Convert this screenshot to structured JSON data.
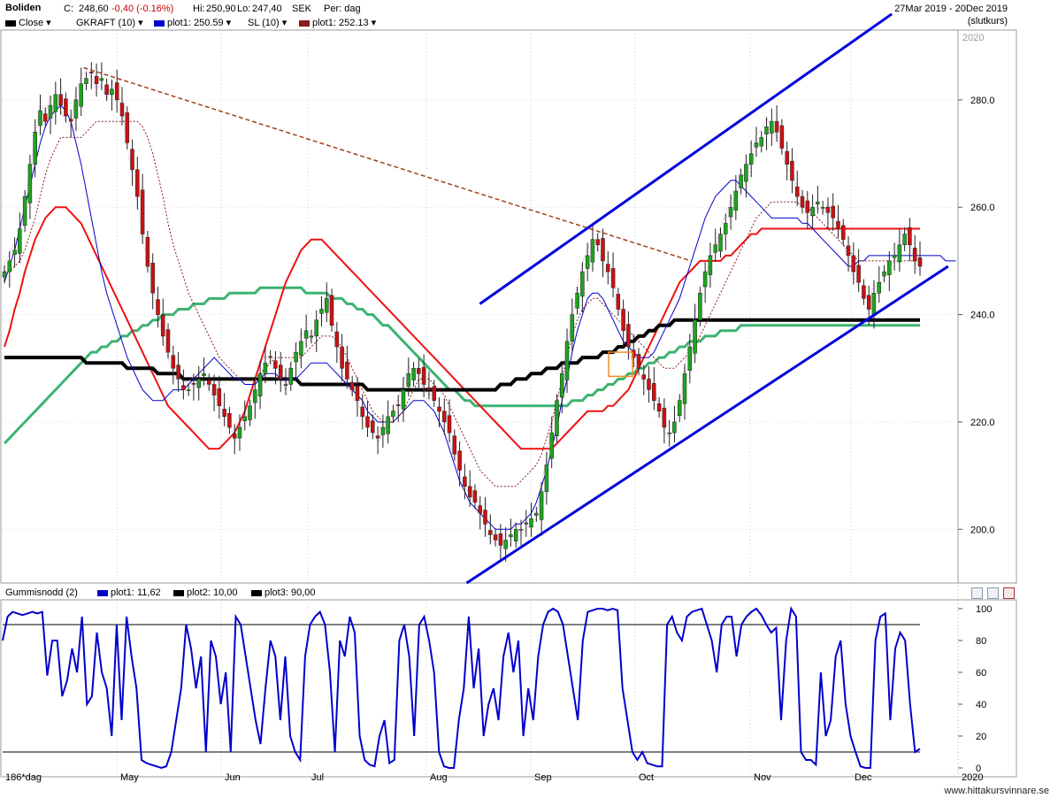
{
  "header": {
    "ticker": "Boliden",
    "close_label": "C:",
    "close_value": "248,60",
    "change": "-0,40 (-0.16%)",
    "hi_label": "Hi:",
    "hi_value": "250,90",
    "lo_label": "Lo:",
    "lo_value": "247,40",
    "currency": "SEK",
    "period": "Per: dag",
    "date_range": "27Mar 2019 - 20Dec 2019",
    "price_type": "(slutkurs)"
  },
  "legend_main": [
    {
      "label": "Close",
      "color": "#000000"
    },
    {
      "label": "GKRAFT (10)",
      "color": "#000000"
    },
    {
      "label": "plot1: 250.59",
      "color": "#0000cc"
    },
    {
      "label": "SL (10)",
      "color": "#000000"
    },
    {
      "label": "plot1: 252.13",
      "color": "#8b1a1a"
    }
  ],
  "legend_sub": [
    {
      "label": "Gummisnodd (2)",
      "color": ""
    },
    {
      "label": "plot1: 11,62",
      "color": "#0000cc"
    },
    {
      "label": "plot2: 10,00",
      "color": "#000000"
    },
    {
      "label": "plot3: 90,00",
      "color": "#000000"
    }
  ],
  "bottom_left": "186*dag",
  "footer": "www.hittakursvinnare.se",
  "chart_data": [
    {
      "type": "candlestick",
      "year_label": "2020",
      "y_ticks": [
        "200.0",
        "220.0",
        "240.0",
        "260.0",
        "280.0"
      ],
      "ylim": [
        190,
        293
      ],
      "x_ticks": [
        "May",
        "Jun",
        "Jul",
        "Aug",
        "Sep",
        "Oct",
        "Nov",
        "Dec",
        "2020"
      ],
      "colors": {
        "up": "#1fa31f",
        "down": "#cc1111",
        "ma_red": "#ee1111",
        "ma_black": "#000000",
        "ma_green": "#3cb371",
        "band": "#0000cc",
        "trail": "#8b1a1a",
        "fast": "#cc88cc",
        "channel": "#0000dd"
      },
      "close": [
        248,
        250,
        252,
        256,
        262,
        268,
        274,
        278,
        276,
        279,
        281,
        279,
        277,
        276,
        280,
        283,
        284,
        285,
        283,
        284,
        281,
        282,
        280,
        277,
        272,
        267,
        262,
        255,
        249,
        244,
        240,
        236,
        233,
        230,
        228,
        226,
        226,
        227,
        228,
        229,
        227,
        225,
        223,
        221,
        219,
        217,
        219,
        221,
        223,
        226,
        229,
        231,
        232,
        230,
        228,
        227,
        230,
        233,
        235,
        237,
        236,
        239,
        241,
        243,
        238,
        234,
        230,
        228,
        226,
        224,
        221,
        219,
        218,
        217,
        219,
        221,
        222,
        223,
        226,
        229,
        230,
        229,
        227,
        226,
        224,
        222,
        220,
        218,
        214,
        211,
        208,
        206,
        205,
        203,
        201,
        199,
        198,
        197,
        198,
        199,
        200,
        200,
        201,
        202,
        203,
        207,
        212,
        218,
        224,
        229,
        235,
        240,
        244,
        248,
        251,
        254,
        253,
        250,
        248,
        245,
        241,
        237,
        234,
        232,
        230,
        228,
        226,
        224,
        222,
        219,
        218,
        220,
        224,
        229,
        234,
        239,
        244,
        248,
        251,
        253,
        255,
        257,
        260,
        263,
        266,
        268,
        270,
        272,
        273,
        275,
        276,
        274,
        271,
        268,
        265,
        262,
        260,
        259,
        260,
        261,
        260,
        259,
        258,
        256,
        254,
        251,
        248,
        246,
        243,
        241,
        244,
        246,
        248,
        250,
        251,
        253,
        255,
        253,
        250,
        249
      ],
      "gkraft_center": [
        246,
        249,
        252,
        256,
        260,
        264,
        268,
        272,
        275,
        277,
        278,
        279,
        278,
        276,
        272,
        268,
        263,
        258,
        253,
        248,
        244,
        241,
        238,
        235,
        232,
        230,
        228,
        226,
        225,
        224,
        224,
        224,
        225,
        226,
        226,
        226,
        227,
        228,
        229,
        230,
        231,
        232,
        231,
        230,
        229,
        228,
        228,
        227,
        227,
        227,
        228,
        229,
        229,
        229,
        228,
        228,
        228,
        228,
        229,
        230,
        231,
        231,
        231,
        231,
        230,
        229,
        228,
        227,
        226,
        225,
        224,
        222,
        221,
        220,
        220,
        220,
        220,
        221,
        222,
        223,
        224,
        224,
        224,
        223,
        222,
        220,
        218,
        215,
        212,
        209,
        207,
        205,
        204,
        203,
        202,
        201,
        200,
        200,
        200,
        200,
        201,
        201,
        202,
        203,
        205,
        208,
        211,
        215,
        219,
        224,
        228,
        233,
        237,
        240,
        243,
        244,
        244,
        243,
        241,
        239,
        237,
        235,
        234,
        233,
        232,
        232,
        232,
        233,
        235,
        237,
        239,
        241,
        243,
        246,
        249,
        252,
        255,
        258,
        260,
        262,
        263,
        264,
        265,
        265,
        264,
        263,
        262,
        261,
        260,
        259,
        258,
        258,
        258,
        258,
        258,
        258,
        257,
        257,
        256,
        255,
        254,
        253,
        252,
        251,
        250,
        249,
        249,
        250,
        250,
        251,
        251,
        251,
        251,
        251,
        251,
        251,
        251,
        251,
        251,
        251,
        251,
        251,
        251,
        251,
        250,
        250,
        250
      ],
      "sl_trail": [
        248,
        248,
        249,
        250,
        252,
        255,
        258,
        262,
        266,
        269,
        271,
        273,
        273,
        273,
        273,
        273,
        274,
        275,
        276,
        276,
        276,
        276,
        276,
        276,
        276,
        276,
        276,
        275,
        273,
        270,
        266,
        262,
        257,
        253,
        250,
        247,
        244,
        242,
        240,
        238,
        236,
        234,
        232,
        231,
        230,
        229,
        228,
        228,
        228,
        228,
        229,
        230,
        231,
        232,
        232,
        232,
        232,
        232,
        232,
        233,
        234,
        235,
        236,
        236,
        236,
        235,
        234,
        232,
        230,
        228,
        226,
        224,
        222,
        221,
        220,
        220,
        220,
        221,
        222,
        224,
        226,
        228,
        228,
        228,
        227,
        226,
        225,
        223,
        221,
        219,
        217,
        215,
        213,
        211,
        210,
        209,
        208,
        208,
        208,
        208,
        208,
        209,
        210,
        211,
        212,
        214,
        217,
        220,
        224,
        228,
        232,
        236,
        239,
        241,
        242,
        243,
        243,
        242,
        241,
        240,
        239,
        238,
        237,
        236,
        235,
        234,
        233,
        232,
        231,
        230,
        230,
        230,
        231,
        232,
        233,
        234,
        236,
        238,
        240,
        242,
        244,
        246,
        248,
        250,
        252,
        254,
        256,
        258,
        259,
        260,
        261,
        261,
        261,
        261,
        261,
        261,
        260,
        260,
        259,
        258,
        257,
        256,
        255,
        254,
        253,
        252,
        251,
        250,
        250,
        250,
        250,
        250,
        250,
        250,
        250,
        250,
        250,
        250,
        250,
        250
      ],
      "ma_red": [
        234,
        237,
        241,
        244,
        248,
        251,
        254,
        256,
        258,
        259,
        260,
        260,
        260,
        259,
        258,
        257,
        255,
        253,
        251,
        249,
        247,
        245,
        243,
        241,
        239,
        237,
        235,
        233,
        231,
        229,
        227,
        225,
        223,
        222,
        221,
        220,
        219,
        218,
        217,
        216,
        215,
        215,
        215,
        216,
        217,
        218,
        220,
        222,
        225,
        228,
        231,
        234,
        237,
        240,
        243,
        246,
        248,
        250,
        252,
        253,
        254,
        254,
        254,
        253,
        252,
        251,
        250,
        249,
        248,
        247,
        246,
        245,
        244,
        243,
        242,
        241,
        240,
        239,
        238,
        237,
        236,
        235,
        234,
        233,
        232,
        231,
        230,
        229,
        228,
        227,
        226,
        225,
        224,
        223,
        222,
        221,
        220,
        219,
        218,
        217,
        216,
        215,
        215,
        215,
        215,
        215,
        215,
        215,
        216,
        217,
        218,
        219,
        220,
        221,
        222,
        222,
        222,
        222,
        223,
        223,
        224,
        225,
        226,
        228,
        230,
        232,
        234,
        236,
        238,
        240,
        242,
        244,
        246,
        247,
        248,
        249,
        250,
        250,
        250,
        250,
        250,
        251,
        251,
        252,
        253,
        254,
        255,
        255,
        256,
        256,
        256,
        256,
        256,
        256,
        256,
        256,
        256,
        256,
        256,
        256,
        256,
        256,
        256,
        256,
        256,
        256,
        256,
        256,
        256,
        256,
        256,
        256,
        256,
        256,
        256,
        256,
        256,
        256,
        256,
        256
      ],
      "ma_black": [
        232,
        232,
        232,
        232,
        232,
        232,
        232,
        232,
        232,
        232,
        232,
        232,
        232,
        232,
        232,
        232,
        231,
        231,
        231,
        231,
        231,
        231,
        231,
        231,
        230,
        230,
        230,
        230,
        230,
        230,
        229,
        229,
        229,
        229,
        229,
        228,
        228,
        228,
        228,
        228,
        228,
        228,
        228,
        228,
        228,
        228,
        228,
        228,
        228,
        228,
        228,
        228,
        228,
        228,
        228,
        228,
        228,
        228,
        227,
        227,
        227,
        227,
        227,
        227,
        227,
        227,
        227,
        227,
        227,
        227,
        227,
        226,
        226,
        226,
        226,
        226,
        226,
        226,
        226,
        226,
        226,
        226,
        226,
        226,
        226,
        226,
        226,
        226,
        226,
        226,
        226,
        226,
        226,
        226,
        226,
        226,
        226,
        227,
        227,
        227,
        228,
        228,
        228,
        229,
        229,
        229,
        230,
        230,
        230,
        231,
        231,
        231,
        231,
        232,
        232,
        232,
        232,
        233,
        233,
        233,
        234,
        234,
        235,
        235,
        236,
        236,
        237,
        237,
        238,
        238,
        238,
        239,
        239,
        239,
        239,
        239,
        239,
        239,
        239,
        239,
        239,
        239,
        239,
        239,
        239,
        239,
        239,
        239,
        239,
        239,
        239,
        239,
        239,
        239,
        239,
        239,
        239,
        239,
        239,
        239,
        239,
        239,
        239,
        239,
        239,
        239,
        239,
        239,
        239,
        239,
        239,
        239,
        239,
        239,
        239,
        239,
        239,
        239,
        239,
        239
      ],
      "ma_green": [
        216,
        217,
        218,
        219,
        220,
        221,
        222,
        223,
        224,
        225,
        226,
        227,
        228,
        229,
        230,
        231,
        232,
        233,
        233,
        234,
        234,
        235,
        235,
        236,
        236,
        237,
        237,
        238,
        238,
        239,
        239,
        240,
        240,
        240,
        241,
        241,
        241,
        242,
        242,
        242,
        243,
        243,
        243,
        243,
        244,
        244,
        244,
        244,
        244,
        244,
        245,
        245,
        245,
        245,
        245,
        245,
        245,
        245,
        245,
        244,
        244,
        244,
        244,
        244,
        243,
        243,
        243,
        242,
        242,
        241,
        241,
        240,
        240,
        239,
        238,
        238,
        237,
        236,
        235,
        234,
        233,
        232,
        231,
        230,
        229,
        228,
        227,
        226,
        226,
        225,
        224,
        224,
        223,
        223,
        223,
        223,
        223,
        223,
        223,
        223,
        223,
        223,
        223,
        223,
        223,
        223,
        223,
        223,
        223,
        223,
        223,
        224,
        224,
        224,
        225,
        225,
        226,
        226,
        227,
        227,
        228,
        228,
        229,
        229,
        230,
        230,
        231,
        231,
        232,
        232,
        233,
        233,
        234,
        234,
        235,
        235,
        235,
        236,
        236,
        236,
        237,
        237,
        237,
        237,
        238,
        238,
        238,
        238,
        238,
        238,
        238,
        238,
        238,
        238,
        238,
        238,
        238,
        238,
        238,
        238,
        238,
        238,
        238,
        238,
        238,
        238,
        238,
        238,
        238,
        238,
        238,
        238,
        238,
        238,
        238,
        238,
        238,
        238,
        238,
        238
      ],
      "trend_lines": [
        {
          "name": "downtrend",
          "style": "dashed",
          "points": [
            [
              90,
              286
            ],
            [
              780,
              250
            ]
          ]
        },
        {
          "name": "channel-upper",
          "style": "solid",
          "points": [
            [
              540,
              242
            ],
            [
              1008,
              296
            ]
          ]
        },
        {
          "name": "channel-lower",
          "style": "solid",
          "points": [
            [
              525,
              190
            ],
            [
              1072,
              249
            ]
          ]
        }
      ]
    },
    {
      "type": "line",
      "y_ticks": [
        "0",
        "20",
        "40",
        "60",
        "80",
        "100"
      ],
      "ylim": [
        0,
        100
      ],
      "levels": [
        10,
        90
      ],
      "values": [
        80,
        95,
        98,
        97,
        96,
        97,
        98,
        97,
        98,
        58,
        80,
        80,
        45,
        55,
        75,
        60,
        95,
        40,
        45,
        85,
        60,
        50,
        20,
        90,
        30,
        95,
        70,
        50,
        5,
        3,
        2,
        1,
        0,
        1,
        10,
        30,
        50,
        90,
        75,
        50,
        70,
        10,
        80,
        70,
        40,
        60,
        10,
        95,
        90,
        70,
        50,
        30,
        15,
        50,
        80,
        70,
        30,
        70,
        20,
        10,
        5,
        70,
        90,
        95,
        98,
        90,
        60,
        10,
        80,
        70,
        95,
        85,
        20,
        5,
        2,
        1,
        20,
        30,
        3,
        5,
        80,
        90,
        70,
        20,
        90,
        95,
        80,
        60,
        10,
        1,
        0,
        0,
        30,
        50,
        95,
        50,
        75,
        20,
        40,
        50,
        30,
        70,
        85,
        60,
        80,
        20,
        50,
        30,
        70,
        90,
        98,
        100,
        98,
        90,
        70,
        50,
        30,
        80,
        98,
        99,
        100,
        100,
        99,
        100,
        99,
        50,
        30,
        10,
        5,
        10,
        3,
        2,
        1,
        1,
        90,
        95,
        85,
        80,
        95,
        98,
        99,
        100,
        90,
        80,
        60,
        90,
        95,
        95,
        70,
        90,
        95,
        98,
        100,
        96,
        90,
        85,
        88,
        30,
        80,
        100,
        95,
        10,
        5,
        5,
        2,
        60,
        20,
        30,
        70,
        80,
        40,
        20,
        10,
        1,
        0,
        0,
        80,
        95,
        97,
        30,
        75,
        85,
        80,
        40,
        10,
        12
      ]
    }
  ]
}
